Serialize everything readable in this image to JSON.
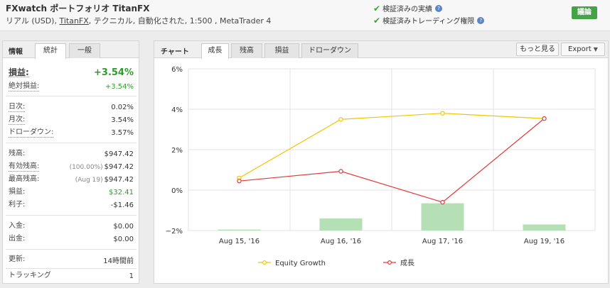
{
  "header": {
    "title": "FXwatch ポートフォリオ TitanFX",
    "subtitle_pre": "リアル (USD), ",
    "broker": "TitanFX",
    "subtitle_post": ", テクニカル, 自動化された, 1:500 , MetaTrader 4",
    "verified_track": "検証済みの実績",
    "verified_trading": "検証済みトレーディング権限",
    "discuss_button": "議論"
  },
  "info": {
    "label": "情報",
    "tabs": [
      "統計",
      "一般"
    ],
    "gain_label": "損益:",
    "gain_value": "+3.54%",
    "abs_gain_label": "絶対損益:",
    "abs_gain_value": "+3.54%",
    "daily_label": "日次:",
    "daily_value": "0.02%",
    "monthly_label": "月次:",
    "monthly_value": "3.54%",
    "drawdown_label": "ドローダウン:",
    "drawdown_value": "3.57%",
    "balance_label": "残高:",
    "balance_value": "$947.42",
    "equity_label": "有効残高:",
    "equity_note": "(100.00%)",
    "equity_value": "$947.42",
    "highest_label": "最高残高:",
    "highest_note": "(Aug 19)",
    "highest_value": "$947.42",
    "profit_label": "損益:",
    "profit_value": "$32.41",
    "interest_label": "利子:",
    "interest_value": "-$1.46",
    "deposits_label": "入金:",
    "deposits_value": "$0.00",
    "withdrawals_label": "出金:",
    "withdrawals_value": "$0.00",
    "updated_label": "更新:",
    "updated_value": "14時間前",
    "tracking_label": "トラッキング",
    "tracking_value": "1"
  },
  "chart_panel": {
    "label": "チャート",
    "tabs": [
      "成長",
      "残高",
      "損益",
      "ドローダウン"
    ],
    "more_button": "もっと見る",
    "export_button": "Export"
  },
  "colors": {
    "equity_line": "#f2c500",
    "growth_line": "#e03a3a",
    "bars": "#b5e0b5",
    "discuss_green": "#46a246",
    "gain_green": "#2f9a2f"
  },
  "chart_data": {
    "type": "line",
    "categories": [
      "Aug 15, '16",
      "Aug 16, '16",
      "Aug 17, '16",
      "Aug 19, '16"
    ],
    "ylim": [
      -2,
      6
    ],
    "yticks": [
      "6%",
      "4%",
      "2%",
      "0%",
      "−2%"
    ],
    "series": [
      {
        "name": "Equity Growth",
        "values": [
          0.6,
          3.5,
          3.8,
          3.54
        ]
      },
      {
        "name": "成長",
        "values": [
          0.45,
          0.93,
          -0.6,
          3.54
        ]
      }
    ],
    "bars": [
      -1.95,
      -1.4,
      -0.65,
      -1.7
    ],
    "grid": true,
    "legend": "bottom"
  }
}
